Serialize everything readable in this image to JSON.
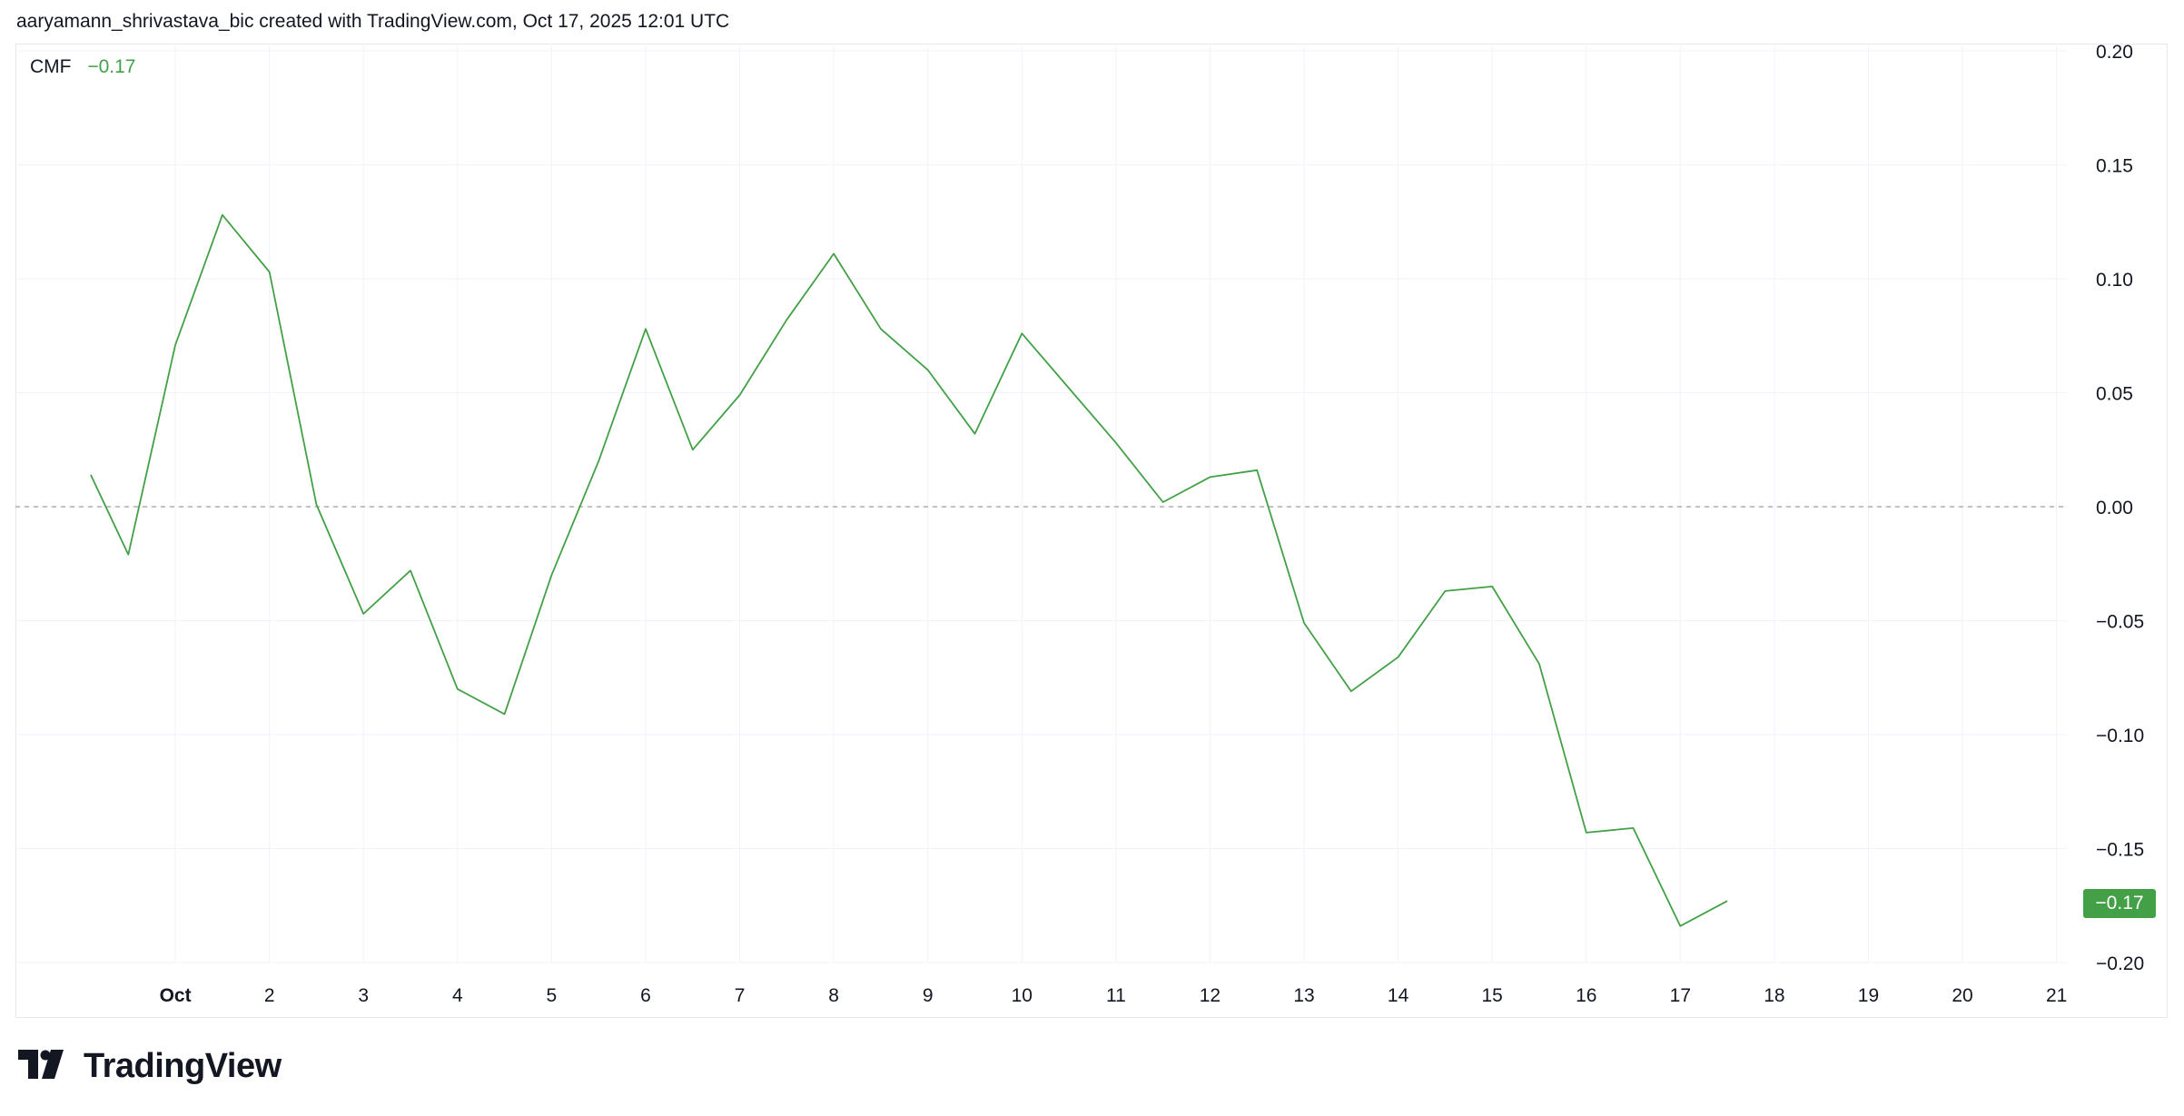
{
  "header": {
    "text": "aaryamann_shrivastava_bic created with TradingView.com, Oct 17, 2025 12:01 UTC"
  },
  "legend": {
    "name": "CMF",
    "value": "−0.17"
  },
  "price_badge": {
    "text": "−0.17"
  },
  "brand": {
    "name": "TradingView",
    "icon": "tradingview-logo-icon"
  },
  "colors": {
    "line": "#43a047",
    "grid": "#f0f3fa",
    "axis_text": "#131722",
    "zero_line": "#9e9e9e"
  },
  "chart_data": {
    "type": "line",
    "title": "",
    "xlabel": "",
    "ylabel": "",
    "series": [
      {
        "name": "CMF",
        "x": [
          0.1,
          0.5,
          1,
          1.5,
          2,
          2.5,
          3,
          3.5,
          4,
          4.5,
          5,
          5.5,
          6,
          6.5,
          7,
          7.5,
          8,
          8.5,
          9,
          9.5,
          10,
          10.5,
          11,
          11.5,
          12,
          12.5,
          13,
          13.5,
          14,
          14.5,
          15,
          15.5,
          16,
          16.5,
          17,
          17.5
        ],
        "values": [
          0.014,
          -0.021,
          0.071,
          0.128,
          0.103,
          0.001,
          -0.047,
          -0.028,
          -0.08,
          -0.091,
          -0.03,
          0.02,
          0.078,
          0.025,
          0.049,
          0.082,
          0.111,
          0.078,
          0.06,
          0.032,
          0.076,
          0.052,
          0.028,
          0.002,
          0.013,
          0.016,
          -0.051,
          -0.081,
          -0.066,
          -0.037,
          -0.035,
          -0.069,
          -0.143,
          -0.141,
          -0.184,
          -0.173
        ]
      }
    ],
    "x_ticks": [
      {
        "value": 1,
        "label": "Oct",
        "bold": true
      },
      {
        "value": 2,
        "label": "2"
      },
      {
        "value": 3,
        "label": "3"
      },
      {
        "value": 4,
        "label": "4"
      },
      {
        "value": 5,
        "label": "5"
      },
      {
        "value": 6,
        "label": "6"
      },
      {
        "value": 7,
        "label": "7"
      },
      {
        "value": 8,
        "label": "8"
      },
      {
        "value": 9,
        "label": "9"
      },
      {
        "value": 10,
        "label": "10"
      },
      {
        "value": 11,
        "label": "11"
      },
      {
        "value": 12,
        "label": "12"
      },
      {
        "value": 13,
        "label": "13"
      },
      {
        "value": 14,
        "label": "14"
      },
      {
        "value": 15,
        "label": "15"
      },
      {
        "value": 16,
        "label": "16"
      },
      {
        "value": 17,
        "label": "17"
      },
      {
        "value": 18,
        "label": "18"
      },
      {
        "value": 19,
        "label": "19"
      },
      {
        "value": 20,
        "label": "20"
      },
      {
        "value": 21,
        "label": "21"
      }
    ],
    "y_ticks": [
      {
        "value": 0.2,
        "label": "0.20"
      },
      {
        "value": 0.15,
        "label": "0.15"
      },
      {
        "value": 0.1,
        "label": "0.10"
      },
      {
        "value": 0.05,
        "label": "0.05"
      },
      {
        "value": 0.0,
        "label": "0.00"
      },
      {
        "value": -0.05,
        "label": "−0.05"
      },
      {
        "value": -0.1,
        "label": "−0.10"
      },
      {
        "value": -0.15,
        "label": "−0.15"
      },
      {
        "value": -0.2,
        "label": "−0.20"
      }
    ],
    "xlim": [
      -0.7,
      21.1
    ],
    "ylim": [
      -0.2,
      0.2
    ],
    "zero_line": 0.0,
    "grid": true,
    "legend_position": "top-left"
  }
}
